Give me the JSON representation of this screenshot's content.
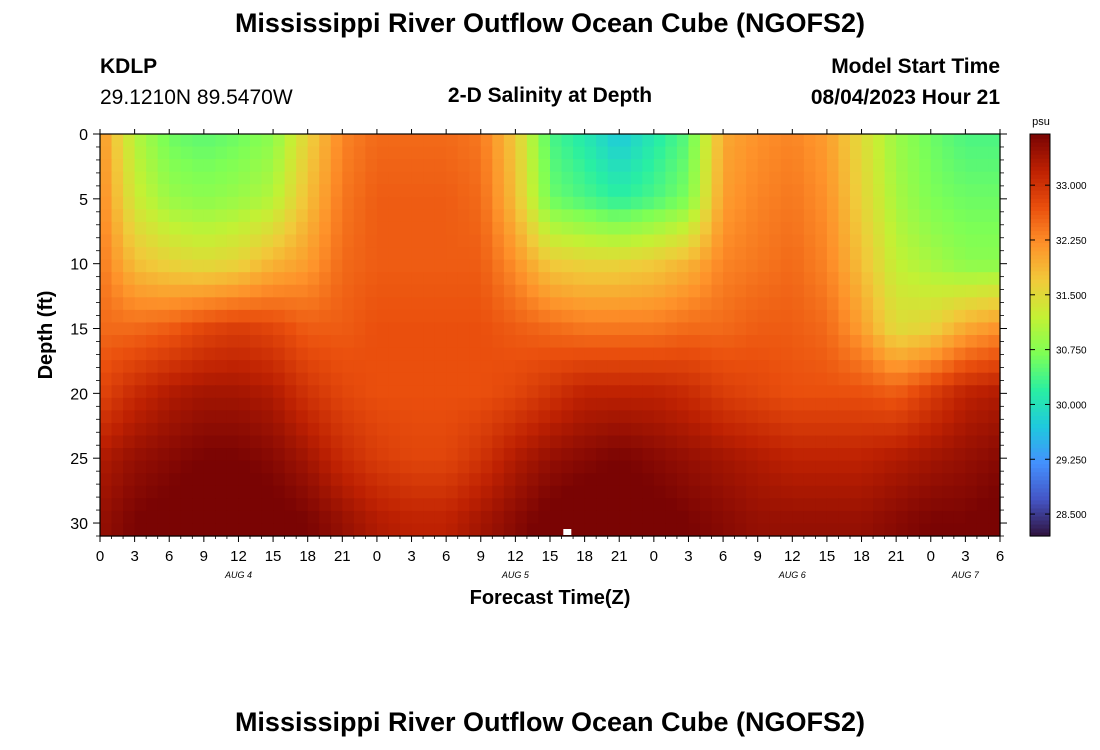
{
  "header": {
    "title": "Mississippi River Outflow Ocean Cube (NGOFS2)",
    "station_id": "KDLP",
    "station_coords": "29.1210N  89.5470W",
    "subtitle": "2-D Salinity at Depth",
    "model_start_label": "Model Start Time",
    "model_start_value": "08/04/2023 Hour 21"
  },
  "footer": {
    "title_repeat": "Mississippi River Outflow Ocean Cube (NGOFS2)"
  },
  "chart_data": {
    "type": "heatmap",
    "title": "2-D Salinity at Depth",
    "xlabel": "Forecast Time(Z)",
    "ylabel": "Depth (ft)",
    "colorbar_label": "psu",
    "x_tick_labels": [
      "0",
      "3",
      "6",
      "9",
      "12",
      "15",
      "18",
      "21",
      "0",
      "3",
      "6",
      "9",
      "12",
      "15",
      "18",
      "21",
      "0",
      "3",
      "6",
      "9",
      "12",
      "15",
      "18",
      "21",
      "0",
      "3",
      "6"
    ],
    "x_hours_range": [
      0,
      78
    ],
    "day_labels": [
      {
        "label": "AUG 4",
        "hour": 12
      },
      {
        "label": "AUG 5",
        "hour": 36
      },
      {
        "label": "AUG 6",
        "hour": 60
      },
      {
        "label": "AUG 7",
        "hour": 75
      }
    ],
    "y_ticks": [
      0,
      5,
      10,
      15,
      20,
      25,
      30
    ],
    "ylim": [
      0,
      31
    ],
    "y_inverted": true,
    "colorbar_ticks": [
      "33.000",
      "32.250",
      "31.500",
      "30.750",
      "30.000",
      "29.250",
      "28.500"
    ],
    "colorbar_range": [
      28.2,
      33.7
    ],
    "colormap": [
      "#30123b",
      "#4454c4",
      "#4490fe",
      "#1fc8de",
      "#29efa2",
      "#7eff55",
      "#c3f134",
      "#f1ca3a",
      "#fe922a",
      "#ea4f0d",
      "#be2102",
      "#7a0403"
    ],
    "x_hours": [
      0,
      3,
      6,
      9,
      12,
      15,
      18,
      21,
      24,
      27,
      30,
      33,
      36,
      39,
      42,
      45,
      48,
      51,
      54,
      57,
      60,
      63,
      66,
      69,
      72,
      75,
      78
    ],
    "depths": [
      0,
      5,
      10,
      15,
      20,
      25,
      30
    ],
    "salinity_psu": [
      [
        32.2,
        31.1,
        30.6,
        30.5,
        30.6,
        30.8,
        31.6,
        32.3,
        32.5,
        32.5,
        32.5,
        32.4,
        31.7,
        30.4,
        30.1,
        29.7,
        30.1,
        30.5,
        32.0,
        32.2,
        32.3,
        32.1,
        31.5,
        30.9,
        30.6,
        30.4,
        30.4
      ],
      [
        32.3,
        31.3,
        30.9,
        30.8,
        30.9,
        31.1,
        31.8,
        32.4,
        32.6,
        32.6,
        32.6,
        32.5,
        31.8,
        30.6,
        30.4,
        30.2,
        30.4,
        30.7,
        32.1,
        32.3,
        32.4,
        32.2,
        31.6,
        31.0,
        30.7,
        30.6,
        30.6
      ],
      [
        32.4,
        31.8,
        31.6,
        31.5,
        31.6,
        31.9,
        32.1,
        32.5,
        32.6,
        32.6,
        32.6,
        32.6,
        32.2,
        31.7,
        31.6,
        31.6,
        31.7,
        31.9,
        32.3,
        32.4,
        32.5,
        32.3,
        31.8,
        31.2,
        31.0,
        30.8,
        30.8
      ],
      [
        32.5,
        32.5,
        32.6,
        32.8,
        32.9,
        32.8,
        32.6,
        32.6,
        32.7,
        32.7,
        32.7,
        32.7,
        32.6,
        32.5,
        32.4,
        32.4,
        32.4,
        32.5,
        32.5,
        32.6,
        32.6,
        32.5,
        32.1,
        31.5,
        31.6,
        32.0,
        32.2
      ],
      [
        32.8,
        33.1,
        33.3,
        33.4,
        33.4,
        33.3,
        33.0,
        32.8,
        32.7,
        32.7,
        32.7,
        32.7,
        32.8,
        33.0,
        33.2,
        33.2,
        33.2,
        33.1,
        32.9,
        32.8,
        32.7,
        32.7,
        32.7,
        32.6,
        32.9,
        33.2,
        33.3
      ],
      [
        33.3,
        33.5,
        33.6,
        33.7,
        33.7,
        33.6,
        33.4,
        33.1,
        32.9,
        32.8,
        32.8,
        33.0,
        33.3,
        33.5,
        33.6,
        33.7,
        33.6,
        33.5,
        33.4,
        33.3,
        33.2,
        33.2,
        33.2,
        33.3,
        33.4,
        33.5,
        33.6
      ],
      [
        33.5,
        33.7,
        33.8,
        33.9,
        33.9,
        33.8,
        33.7,
        33.5,
        33.3,
        33.2,
        33.2,
        33.4,
        33.6,
        33.8,
        33.9,
        33.9,
        33.8,
        33.7,
        33.6,
        33.5,
        33.5,
        33.5,
        33.5,
        33.6,
        33.7,
        33.7,
        33.8
      ]
    ],
    "marker": {
      "hour": 40.5,
      "depth": 31
    }
  }
}
